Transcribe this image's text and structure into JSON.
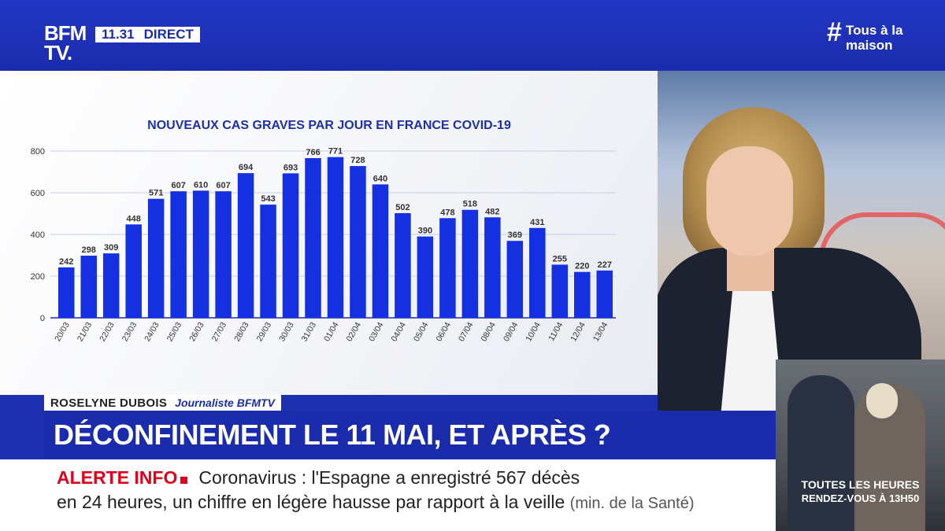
{
  "header": {
    "logo_line1": "BFM",
    "logo_line2": "TV.",
    "time": "11.31",
    "live_label": "DIRECT",
    "hashtag_symbol": "#",
    "hashtag_line1": "Tous à la",
    "hashtag_line2": "maison"
  },
  "chart_data": {
    "type": "bar",
    "title": "NOUVEAUX CAS GRAVES PAR JOUR EN FRANCE COVID-19",
    "categories": [
      "20/03",
      "21/03",
      "22/03",
      "23/03",
      "24/03",
      "25/03",
      "26/03",
      "27/03",
      "28/03",
      "29/03",
      "30/03",
      "31/03",
      "01/04",
      "02/04",
      "03/04",
      "04/04",
      "05/04",
      "06/04",
      "07/04",
      "08/04",
      "09/04",
      "10/04",
      "11/04",
      "12/04",
      "13/04"
    ],
    "values": [
      242,
      298,
      309,
      448,
      571,
      607,
      610,
      607,
      694,
      543,
      693,
      766,
      771,
      728,
      640,
      502,
      390,
      478,
      518,
      482,
      369,
      431,
      255,
      220,
      227
    ],
    "ylim": [
      0,
      800
    ],
    "yticks": [
      0,
      200,
      400,
      600,
      800
    ],
    "grid": true,
    "bar_color": "#1530e0",
    "xlabel": "",
    "ylabel": ""
  },
  "presenter": {
    "name": "ROSELYNE DUBOIS",
    "role": "Journaliste BFMTV"
  },
  "headline": "DÉCONFINEMENT LE 11 MAI, ET APRÈS ?",
  "ticker": {
    "label": "ALERTE INFO",
    "line1": "Coronavirus : l'Espagne a enregistré 567 décès",
    "line2": "en 24 heures, un chiffre en légère hausse par rapport à la veille",
    "source": "(min. de la Santé)"
  },
  "inset": {
    "line1": "TOUTES LES HEURES",
    "line2": "RENDEZ-VOUS À 13H50"
  },
  "colors": {
    "brand_blue": "#1a2cab",
    "alert_red": "#e2001a"
  }
}
